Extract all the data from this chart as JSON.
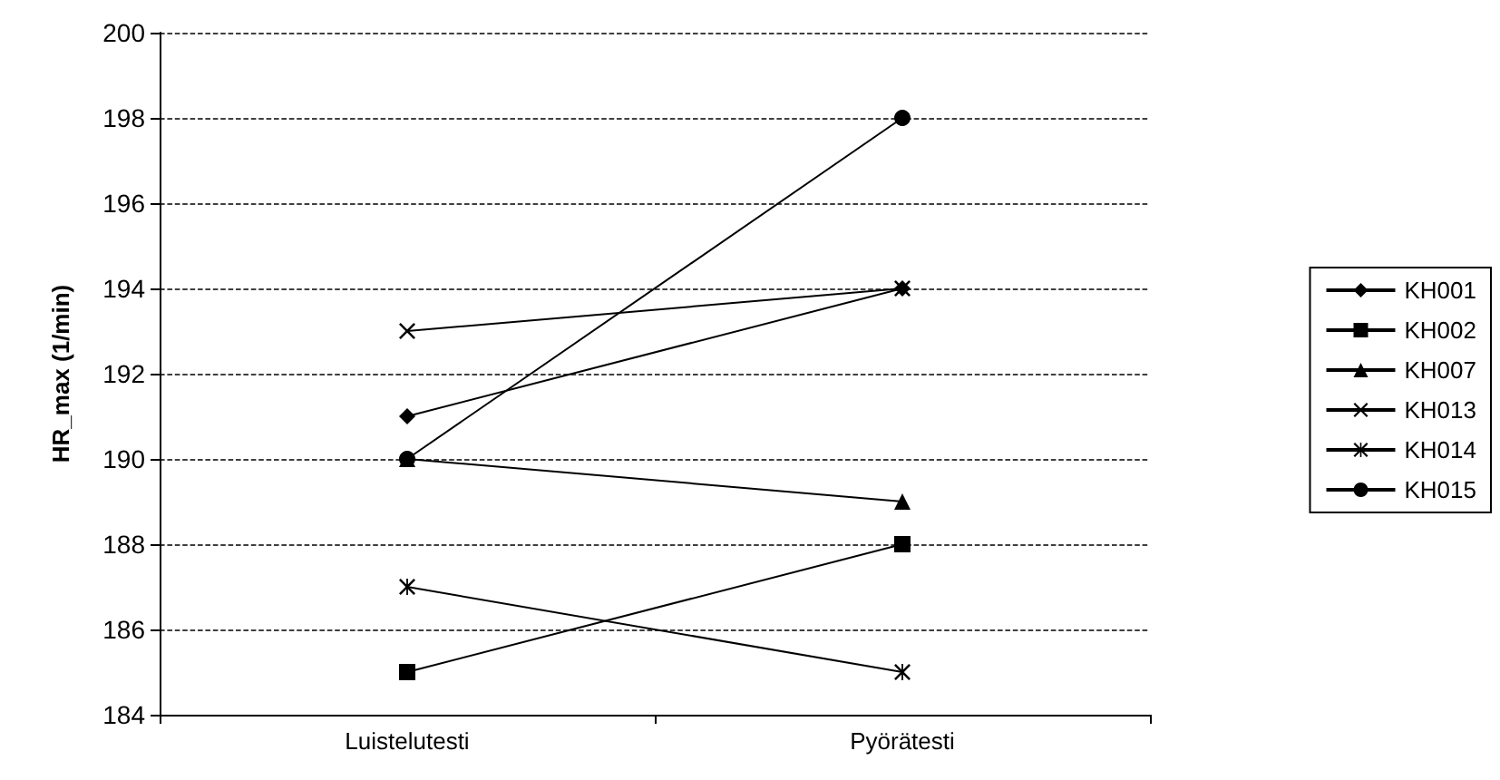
{
  "chart_data": {
    "type": "line",
    "ylabel": "HR_max (1/min)",
    "categories": [
      "Luistelutesti",
      "Pyörätesti"
    ],
    "series": [
      {
        "name": "KH001",
        "color": "#000000",
        "marker": "diamond",
        "values": [
          191,
          194
        ]
      },
      {
        "name": "KH002",
        "color": "#000000",
        "marker": "square",
        "values": [
          185,
          188
        ]
      },
      {
        "name": "KH007",
        "color": "#000000",
        "marker": "triangle",
        "values": [
          190,
          189
        ]
      },
      {
        "name": "KH013",
        "color": "#000000",
        "marker": "cross",
        "values": [
          193,
          194
        ]
      },
      {
        "name": "KH014",
        "color": "#000000",
        "marker": "star",
        "values": [
          187,
          185
        ]
      },
      {
        "name": "KH015",
        "color": "#000000",
        "marker": "circle",
        "values": [
          190,
          198
        ]
      }
    ],
    "ylim": [
      184,
      200
    ],
    "yticks": [
      184,
      186,
      188,
      190,
      192,
      194,
      196,
      198,
      200
    ],
    "grid": "y",
    "legend": "right",
    "line_style": "solid"
  }
}
